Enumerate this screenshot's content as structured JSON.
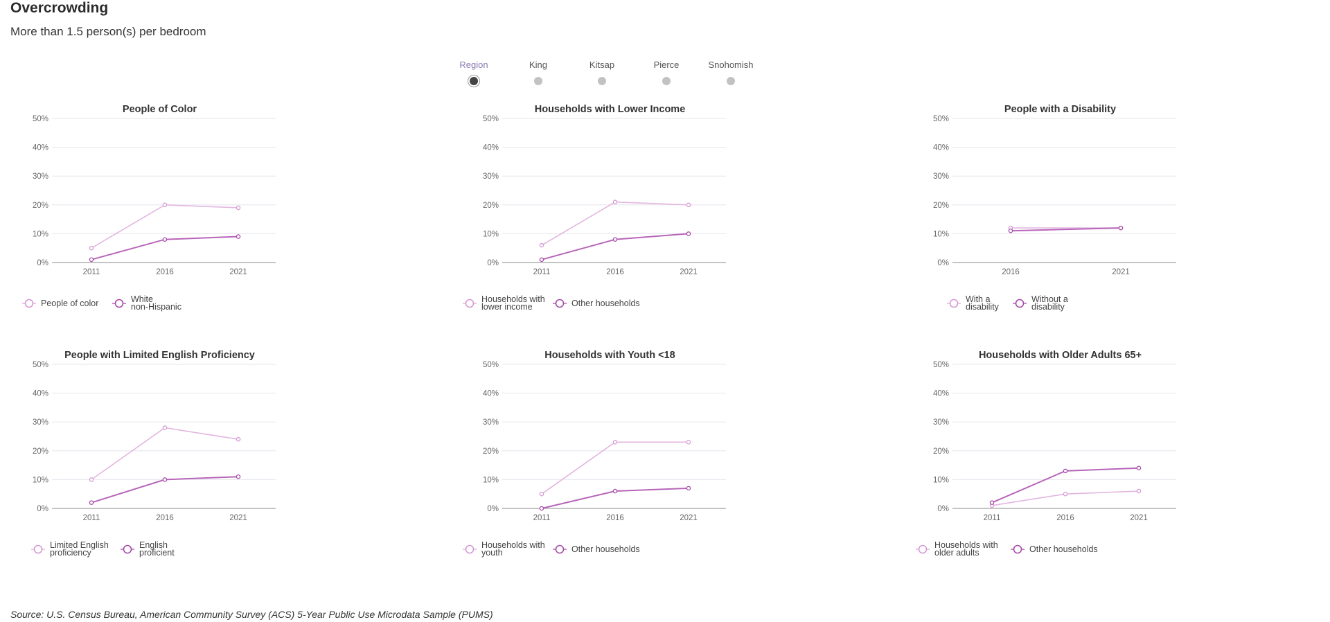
{
  "header": {
    "title": "Overcrowding",
    "subtitle": "More than 1.5 person(s) per bedroom"
  },
  "region_selector": {
    "options": [
      {
        "label": "Region",
        "selected": true
      },
      {
        "label": "King",
        "selected": false
      },
      {
        "label": "Kitsap",
        "selected": false
      },
      {
        "label": "Pierce",
        "selected": false
      },
      {
        "label": "Snohomish",
        "selected": false
      }
    ]
  },
  "colors": {
    "light_series": "#e2b6e0",
    "dark_series": "#b765b9",
    "light_series_marker": "#d49ad3",
    "dark_series_marker": "#a64aa8"
  },
  "chart_data": [
    {
      "type": "line",
      "title": "People of Color",
      "x": [
        "2011",
        "2016",
        "2021"
      ],
      "ylim": [
        0,
        50
      ],
      "yticks": [
        "0%",
        "10%",
        "20%",
        "30%",
        "40%",
        "50%"
      ],
      "legend_position": "bottom",
      "series": [
        {
          "name": [
            "People of color"
          ],
          "values": [
            5,
            20,
            19
          ]
        },
        {
          "name": [
            "White",
            "non-Hispanic"
          ],
          "values": [
            1,
            8,
            9
          ]
        }
      ]
    },
    {
      "type": "line",
      "title": "Households with Lower Income",
      "x": [
        "2011",
        "2016",
        "2021"
      ],
      "ylim": [
        0,
        50
      ],
      "yticks": [
        "0%",
        "10%",
        "20%",
        "30%",
        "40%",
        "50%"
      ],
      "legend_position": "bottom",
      "series": [
        {
          "name": [
            "Households with",
            "lower income"
          ],
          "values": [
            6,
            21,
            20
          ]
        },
        {
          "name": [
            "Other households"
          ],
          "values": [
            1,
            8,
            10
          ]
        }
      ]
    },
    {
      "type": "line",
      "title": "People with a Disability",
      "x": [
        "2016",
        "2021"
      ],
      "ylim": [
        0,
        50
      ],
      "yticks": [
        "0%",
        "10%",
        "20%",
        "30%",
        "40%",
        "50%"
      ],
      "legend_position": "bottom",
      "series": [
        {
          "name": [
            "With a",
            "disability"
          ],
          "values": [
            12,
            12
          ]
        },
        {
          "name": [
            "Without a",
            "disability"
          ],
          "values": [
            11,
            12
          ]
        }
      ]
    },
    {
      "type": "line",
      "title": "People with Limited English Proficiency",
      "x": [
        "2011",
        "2016",
        "2021"
      ],
      "ylim": [
        0,
        50
      ],
      "yticks": [
        "0%",
        "10%",
        "20%",
        "30%",
        "40%",
        "50%"
      ],
      "legend_position": "bottom",
      "series": [
        {
          "name": [
            "Limited English",
            "proficiency"
          ],
          "values": [
            10,
            28,
            24
          ]
        },
        {
          "name": [
            "English",
            "proficient"
          ],
          "values": [
            2,
            10,
            11
          ]
        }
      ]
    },
    {
      "type": "line",
      "title": "Households with Youth <18",
      "x": [
        "2011",
        "2016",
        "2021"
      ],
      "ylim": [
        0,
        50
      ],
      "yticks": [
        "0%",
        "10%",
        "20%",
        "30%",
        "40%",
        "50%"
      ],
      "legend_position": "bottom",
      "series": [
        {
          "name": [
            "Households with",
            "youth"
          ],
          "values": [
            5,
            23,
            23
          ]
        },
        {
          "name": [
            "Other households"
          ],
          "values": [
            0,
            6,
            7
          ]
        }
      ]
    },
    {
      "type": "line",
      "title": "Households with Older Adults 65+",
      "x": [
        "2011",
        "2016",
        "2021"
      ],
      "ylim": [
        0,
        50
      ],
      "yticks": [
        "0%",
        "10%",
        "20%",
        "30%",
        "40%",
        "50%"
      ],
      "legend_position": "bottom",
      "series": [
        {
          "name": [
            "Households with",
            "older adults"
          ],
          "values": [
            1,
            5,
            6
          ]
        },
        {
          "name": [
            "Other households"
          ],
          "values": [
            2,
            13,
            14
          ]
        }
      ]
    }
  ],
  "footer": {
    "source": "Source: U.S. Census Bureau, American Community Survey (ACS) 5-Year Public Use Microdata Sample (PUMS)"
  }
}
